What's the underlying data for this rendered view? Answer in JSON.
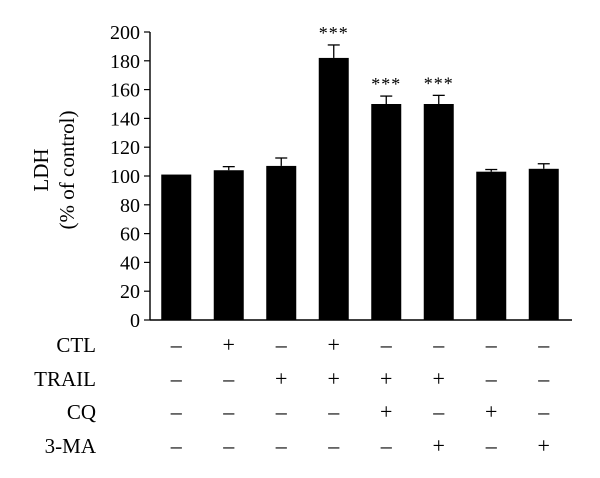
{
  "chart_data": {
    "type": "bar",
    "title": "",
    "ylabel_line1": "LDH",
    "ylabel_line2": "(% of control)",
    "ylim": [
      0,
      200
    ],
    "yticks": [
      0,
      20,
      40,
      60,
      80,
      100,
      120,
      140,
      160,
      180,
      200
    ],
    "grid": false,
    "bar_color": "#000000",
    "values": [
      101,
      104,
      107,
      182,
      150,
      150,
      103,
      105
    ],
    "errors": [
      0,
      2.5,
      5.5,
      9,
      5.5,
      6,
      1.5,
      3.5
    ],
    "significance": [
      "",
      "",
      "",
      "***",
      "***",
      "***",
      "",
      ""
    ],
    "condition_rows": [
      {
        "label": "CTL",
        "marks": [
          "–",
          "+",
          "–",
          "+",
          "–",
          "–",
          "–",
          "–"
        ]
      },
      {
        "label": "TRAIL",
        "marks": [
          "–",
          "–",
          "+",
          "+",
          "+",
          "+",
          "–",
          "–"
        ]
      },
      {
        "label": "CQ",
        "marks": [
          "–",
          "–",
          "–",
          "–",
          "+",
          "–",
          "+",
          "–"
        ]
      },
      {
        "label": "3-MA",
        "marks": [
          "–",
          "–",
          "–",
          "–",
          "–",
          "+",
          "–",
          "+"
        ]
      }
    ]
  }
}
